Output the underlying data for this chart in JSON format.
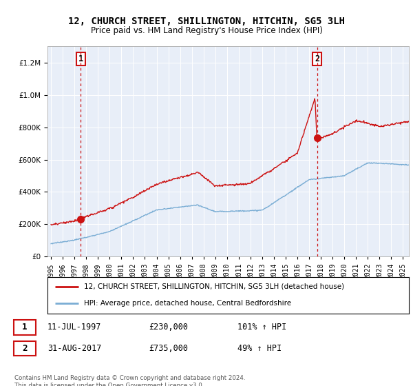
{
  "title": "12, CHURCH STREET, SHILLINGTON, HITCHIN, SG5 3LH",
  "subtitle": "Price paid vs. HM Land Registry's House Price Index (HPI)",
  "legend_line1": "12, CHURCH STREET, SHILLINGTON, HITCHIN, SG5 3LH (detached house)",
  "legend_line2": "HPI: Average price, detached house, Central Bedfordshire",
  "footnote": "Contains HM Land Registry data © Crown copyright and database right 2024.\nThis data is licensed under the Open Government Licence v3.0.",
  "sale1_date": "11-JUL-1997",
  "sale1_price": "£230,000",
  "sale1_hpi": "101% ↑ HPI",
  "sale2_date": "31-AUG-2017",
  "sale2_price": "£735,000",
  "sale2_hpi": "49% ↑ HPI",
  "sale1_year": 1997.53,
  "sale1_value": 230000,
  "sale2_year": 2017.67,
  "sale2_value": 735000,
  "hpi_color": "#7aadd4",
  "price_color": "#cc1111",
  "sale_dot_color": "#cc1111",
  "vline_color": "#cc1111",
  "background_color": "#e8eef8",
  "ylim": [
    0,
    1300000
  ],
  "xlim_start": 1994.7,
  "xlim_end": 2025.5
}
